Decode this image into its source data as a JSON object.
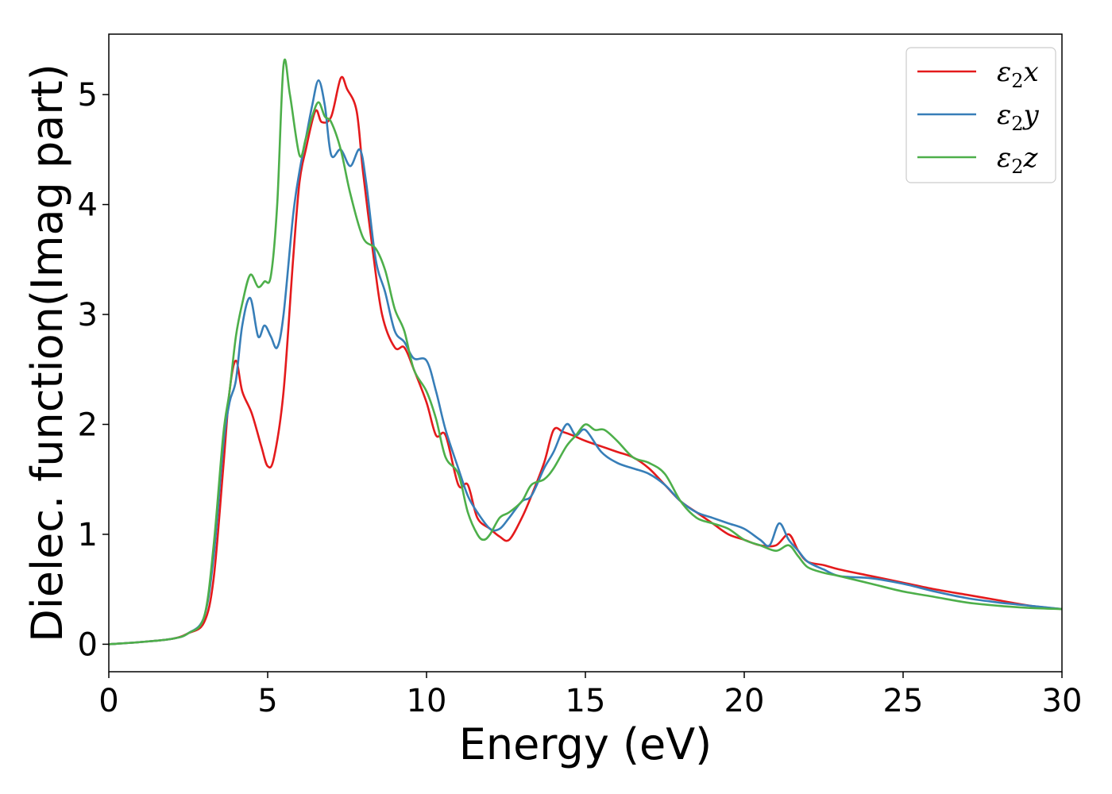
{
  "chart_data": {
    "type": "line",
    "title": "",
    "xlabel": "Energy (eV)",
    "ylabel": "Dielec. function(Imag part)",
    "xlim": [
      0,
      30
    ],
    "ylim": [
      -0.25,
      5.55
    ],
    "xticks": [
      0,
      5,
      10,
      15,
      20,
      25,
      30
    ],
    "yticks": [
      0,
      1,
      2,
      3,
      4,
      5
    ],
    "grid": false,
    "legend": {
      "placement": "top-right"
    },
    "series": [
      {
        "name": "ε2x",
        "base": "ε",
        "sub": "2",
        "axis": "x",
        "color": "#e41a1c",
        "x": [
          0,
          1,
          2,
          2.5,
          3,
          3.3,
          3.6,
          3.8,
          4.0,
          4.2,
          4.5,
          4.8,
          5.0,
          5.2,
          5.5,
          5.8,
          6.0,
          6.2,
          6.5,
          6.7,
          7.0,
          7.3,
          7.5,
          7.8,
          8.0,
          8.3,
          8.6,
          9.0,
          9.3,
          9.6,
          10.0,
          10.3,
          10.6,
          11.0,
          11.3,
          11.6,
          12.0,
          12.3,
          12.6,
          13.0,
          13.3,
          13.7,
          14.0,
          14.3,
          14.6,
          15.0,
          15.5,
          16.0,
          16.5,
          17.0,
          17.5,
          18.0,
          18.5,
          19.0,
          19.5,
          20.0,
          20.5,
          21.0,
          21.4,
          21.7,
          22.0,
          22.5,
          23.0,
          24.0,
          25.0,
          26.0,
          27.0,
          28.0,
          29.0,
          30.0
        ],
        "y": [
          0.0,
          0.02,
          0.05,
          0.1,
          0.2,
          0.6,
          1.6,
          2.3,
          2.58,
          2.3,
          2.1,
          1.8,
          1.62,
          1.7,
          2.3,
          3.5,
          4.2,
          4.5,
          4.85,
          4.75,
          4.8,
          5.15,
          5.05,
          4.85,
          4.3,
          3.6,
          3.0,
          2.7,
          2.7,
          2.5,
          2.2,
          1.9,
          1.9,
          1.45,
          1.45,
          1.15,
          1.05,
          0.98,
          0.95,
          1.15,
          1.35,
          1.65,
          1.95,
          1.93,
          1.9,
          1.85,
          1.8,
          1.75,
          1.7,
          1.6,
          1.45,
          1.3,
          1.2,
          1.1,
          1.0,
          0.95,
          0.9,
          0.9,
          1.0,
          0.85,
          0.75,
          0.72,
          0.68,
          0.62,
          0.56,
          0.5,
          0.45,
          0.4,
          0.35,
          0.32
        ]
      },
      {
        "name": "ε2y",
        "base": "ε",
        "sub": "2",
        "axis": "y",
        "color": "#377eb8",
        "x": [
          0,
          1,
          2,
          2.5,
          3,
          3.3,
          3.6,
          3.8,
          4.0,
          4.2,
          4.45,
          4.7,
          4.9,
          5.1,
          5.3,
          5.5,
          5.8,
          6.0,
          6.2,
          6.4,
          6.6,
          6.8,
          7.0,
          7.3,
          7.6,
          7.9,
          8.1,
          8.4,
          8.7,
          9.0,
          9.3,
          9.6,
          10.0,
          10.3,
          10.6,
          11.0,
          11.3,
          11.6,
          12.0,
          12.3,
          12.6,
          13.0,
          13.3,
          13.7,
          14.0,
          14.4,
          14.7,
          15.0,
          15.5,
          16.0,
          16.5,
          17.0,
          17.5,
          18.0,
          18.5,
          19.0,
          19.5,
          20.0,
          20.5,
          20.8,
          21.1,
          21.4,
          21.7,
          22.0,
          22.5,
          23.0,
          24.0,
          25.0,
          26.0,
          27.0,
          28.0,
          29.0,
          30.0
        ],
        "y": [
          0.0,
          0.02,
          0.05,
          0.1,
          0.25,
          0.8,
          1.8,
          2.2,
          2.4,
          2.9,
          3.15,
          2.8,
          2.9,
          2.8,
          2.7,
          3.0,
          3.9,
          4.3,
          4.6,
          4.9,
          5.13,
          4.9,
          4.45,
          4.5,
          4.35,
          4.5,
          4.2,
          3.5,
          3.2,
          2.85,
          2.75,
          2.6,
          2.58,
          2.3,
          1.95,
          1.6,
          1.35,
          1.2,
          1.05,
          1.05,
          1.15,
          1.3,
          1.35,
          1.6,
          1.75,
          2.0,
          1.9,
          1.95,
          1.75,
          1.65,
          1.6,
          1.55,
          1.45,
          1.3,
          1.2,
          1.15,
          1.1,
          1.05,
          0.95,
          0.9,
          1.1,
          0.95,
          0.85,
          0.75,
          0.68,
          0.62,
          0.6,
          0.55,
          0.48,
          0.42,
          0.38,
          0.35,
          0.32
        ]
      },
      {
        "name": "ε2z",
        "base": "ε",
        "sub": "2",
        "axis": "z",
        "color": "#4daf4a",
        "x": [
          0,
          1,
          2,
          2.5,
          3,
          3.3,
          3.6,
          3.8,
          4.0,
          4.2,
          4.45,
          4.7,
          4.9,
          5.1,
          5.3,
          5.5,
          5.7,
          6.0,
          6.2,
          6.4,
          6.6,
          6.8,
          7.0,
          7.3,
          7.6,
          8.0,
          8.4,
          8.7,
          9.0,
          9.3,
          9.6,
          10.0,
          10.3,
          10.6,
          11.0,
          11.3,
          11.6,
          11.8,
          12.0,
          12.3,
          12.6,
          13.0,
          13.3,
          13.7,
          14.0,
          14.4,
          14.7,
          15.0,
          15.3,
          15.6,
          16.0,
          16.5,
          17.0,
          17.5,
          18.0,
          18.5,
          19.0,
          19.5,
          20.0,
          20.5,
          21.0,
          21.4,
          21.7,
          22.0,
          22.5,
          23.0,
          24.0,
          25.0,
          26.0,
          27.0,
          28.0,
          29.0,
          30.0
        ],
        "y": [
          0.0,
          0.02,
          0.05,
          0.1,
          0.25,
          0.9,
          1.9,
          2.3,
          2.8,
          3.1,
          3.36,
          3.25,
          3.3,
          3.35,
          4.0,
          5.27,
          5.0,
          4.45,
          4.6,
          4.8,
          4.93,
          4.8,
          4.75,
          4.5,
          4.1,
          3.7,
          3.6,
          3.4,
          3.05,
          2.85,
          2.5,
          2.3,
          2.05,
          1.7,
          1.55,
          1.2,
          1.0,
          0.95,
          1.0,
          1.15,
          1.2,
          1.3,
          1.45,
          1.5,
          1.6,
          1.8,
          1.9,
          2.0,
          1.95,
          1.95,
          1.85,
          1.7,
          1.65,
          1.55,
          1.3,
          1.15,
          1.1,
          1.05,
          0.95,
          0.9,
          0.85,
          0.9,
          0.8,
          0.7,
          0.65,
          0.62,
          0.55,
          0.48,
          0.43,
          0.38,
          0.35,
          0.33,
          0.32
        ]
      }
    ]
  }
}
